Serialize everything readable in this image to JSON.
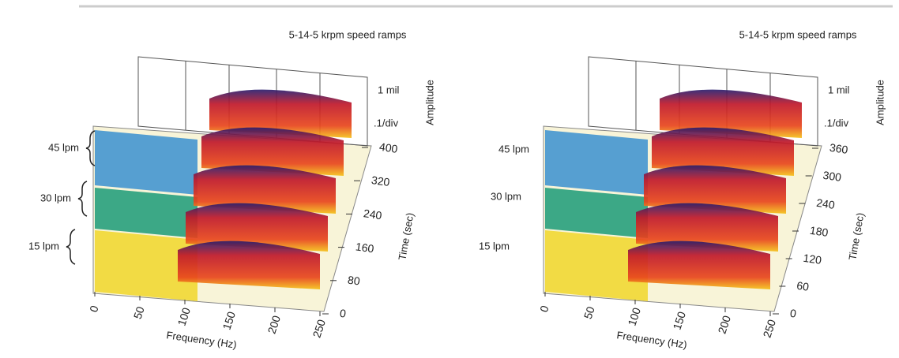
{
  "panels": [
    {
      "title": "5-14-5 krpm speed ramps",
      "amplitude_scale": [
        "1 mil",
        ".1/div"
      ],
      "amplitude_label": "Amplitude",
      "time_label": "Time (sec)",
      "time_ticks": [
        0,
        80,
        160,
        240,
        320,
        400
      ],
      "frequency_label": "Frequency (Hz)",
      "frequency_ticks": [
        0,
        50,
        100,
        150,
        200,
        250
      ],
      "flow_labels": [
        "45 lpm",
        "30 lpm",
        "15 lpm"
      ]
    },
    {
      "title": "5-14-5 krpm speed ramps",
      "amplitude_scale": [
        "1 mil",
        ".1/div"
      ],
      "amplitude_label": "Amplitude",
      "time_label": "Time (sec)",
      "time_ticks": [
        0,
        60,
        120,
        180,
        240,
        300,
        360
      ],
      "frequency_label": "Frequency (Hz)",
      "frequency_ticks": [
        0,
        50,
        100,
        150,
        200,
        250
      ],
      "flow_labels": [
        "45 lpm",
        "30 lpm",
        "15 lpm"
      ]
    }
  ]
}
